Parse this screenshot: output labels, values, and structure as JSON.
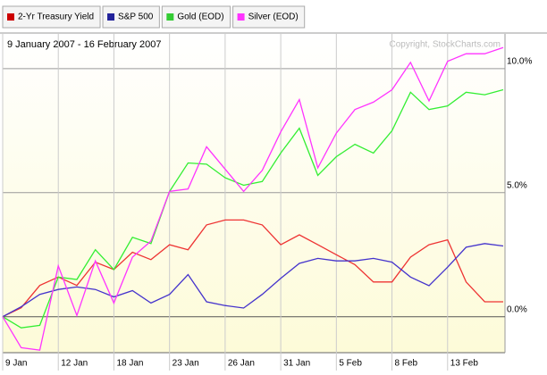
{
  "chart_data": {
    "type": "line",
    "title": "9 January 2007 - 16 February 2007",
    "annotation": "Copyright, StockCharts.com",
    "categories": [
      "9 Jan",
      null,
      null,
      "12 Jan",
      null,
      null,
      "18 Jan",
      null,
      null,
      "23 Jan",
      null,
      null,
      "26 Jan",
      null,
      null,
      "31 Jan",
      null,
      null,
      "5 Feb",
      null,
      null,
      "8 Feb",
      null,
      null,
      "13 Feb",
      null,
      null,
      null
    ],
    "series": [
      {
        "name": "2-Yr Treasury Yield",
        "color": "#ee3333",
        "swatch": "#cc0000",
        "values": [
          0,
          0.36,
          1.26,
          1.6,
          1.26,
          2.2,
          1.9,
          2.6,
          2.3,
          2.9,
          2.7,
          3.7,
          3.9,
          3.9,
          3.7,
          2.9,
          3.3,
          2.9,
          2.5,
          2.1,
          1.4,
          1.4,
          2.4,
          2.9,
          3.1,
          1.4,
          0.6,
          0.6
        ]
      },
      {
        "name": "S&P 500",
        "color": "#4433cc",
        "swatch": "#22229a",
        "values": [
          0,
          0.4,
          0.9,
          1.1,
          1.2,
          1.1,
          0.8,
          1.05,
          0.55,
          0.9,
          1.7,
          0.6,
          0.45,
          0.35,
          0.9,
          1.55,
          2.15,
          2.35,
          2.25,
          2.25,
          2.35,
          2.2,
          1.6,
          1.25,
          2.0,
          2.8,
          2.95,
          2.85
        ]
      },
      {
        "name": "Gold (EOD)",
        "color": "#33ee33",
        "swatch": "#33cc33",
        "values": [
          0,
          -0.45,
          -0.35,
          1.6,
          1.5,
          2.7,
          1.9,
          3.2,
          2.95,
          5.05,
          6.2,
          6.15,
          5.6,
          5.3,
          5.45,
          6.6,
          7.6,
          5.7,
          6.45,
          6.95,
          6.6,
          7.5,
          9.05,
          8.35,
          8.5,
          9.05,
          8.95,
          9.15
        ]
      },
      {
        "name": "Silver (EOD)",
        "color": "#ff33ff",
        "swatch": "#ff33ff",
        "values": [
          0,
          -1.25,
          -1.35,
          2.05,
          0.05,
          2.25,
          0.55,
          2.4,
          3.05,
          5.05,
          5.15,
          6.85,
          5.95,
          5.05,
          5.9,
          7.45,
          8.75,
          6.0,
          7.4,
          8.35,
          8.65,
          9.15,
          10.25,
          8.7,
          10.3,
          10.6,
          10.6,
          10.85
        ]
      }
    ],
    "ylim": [
      -1.45,
      11.4
    ],
    "yticks": [
      {
        "value": 0,
        "label": "0.0%"
      },
      {
        "value": 5,
        "label": "5.0%"
      },
      {
        "value": 10,
        "label": "10.0%"
      }
    ],
    "grid": true
  }
}
